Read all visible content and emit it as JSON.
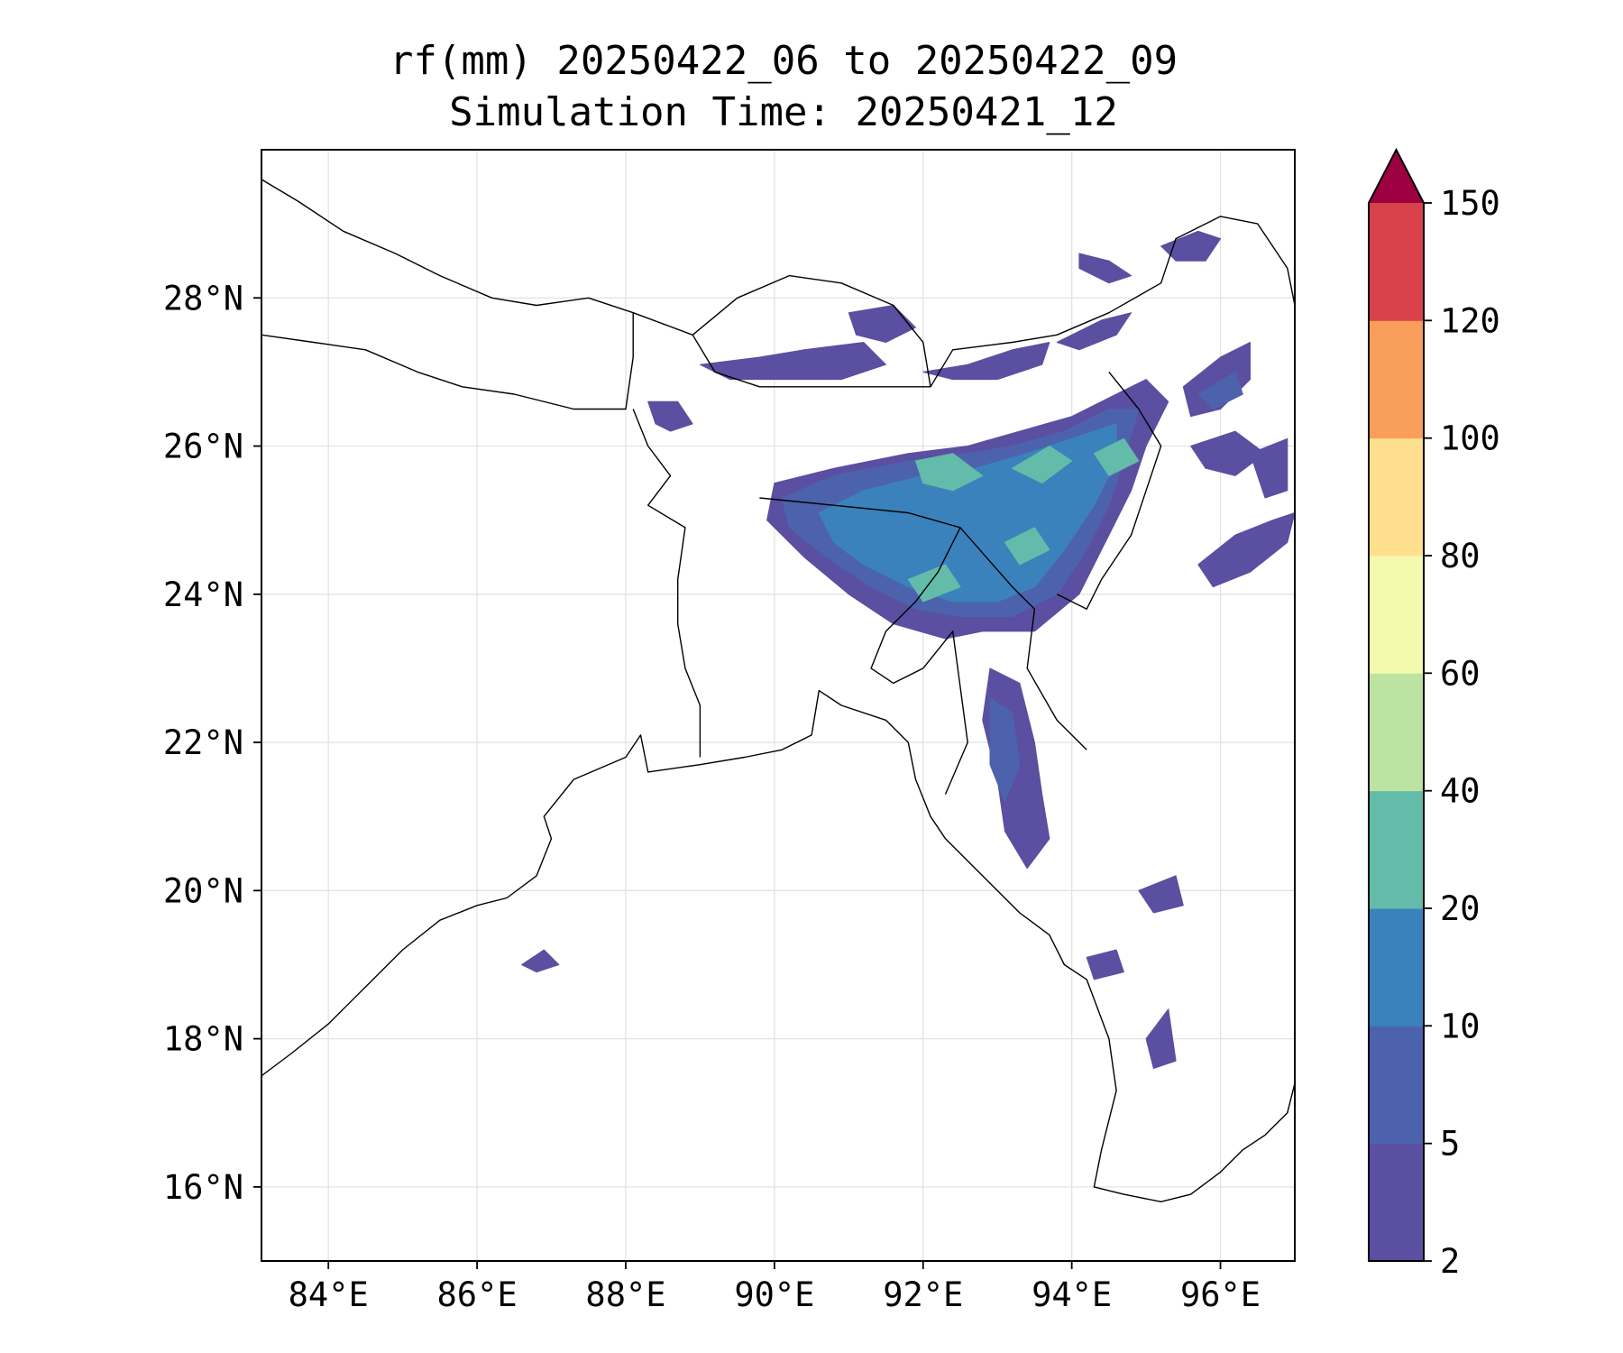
{
  "title": {
    "line1": "rf(mm) 20250422_06 to 20250422_09",
    "line2": "Simulation Time: 20250421_12"
  },
  "map": {
    "lon_range": [
      83.1,
      97.0
    ],
    "lat_range": [
      15.0,
      30.0
    ],
    "lon_ticks": [
      {
        "value": 84,
        "label": "84°E"
      },
      {
        "value": 86,
        "label": "86°E"
      },
      {
        "value": 88,
        "label": "88°E"
      },
      {
        "value": 90,
        "label": "90°E"
      },
      {
        "value": 92,
        "label": "92°E"
      },
      {
        "value": 94,
        "label": "94°E"
      },
      {
        "value": 96,
        "label": "96°E"
      }
    ],
    "lat_ticks": [
      {
        "value": 16,
        "label": "16°N"
      },
      {
        "value": 18,
        "label": "18°N"
      },
      {
        "value": 20,
        "label": "20°N"
      },
      {
        "value": 22,
        "label": "22°N"
      },
      {
        "value": 24,
        "label": "24°N"
      },
      {
        "value": 26,
        "label": "26°N"
      },
      {
        "value": 28,
        "label": "28°N"
      }
    ],
    "gridlines": true
  },
  "colorbar": {
    "levels": [
      {
        "label": "2"
      },
      {
        "label": "5"
      },
      {
        "label": "10"
      },
      {
        "label": "20"
      },
      {
        "label": "40"
      },
      {
        "label": "60"
      },
      {
        "label": "80"
      },
      {
        "label": "100"
      },
      {
        "label": "120"
      },
      {
        "label": "150"
      }
    ],
    "colors": [
      "#5a4fa0",
      "#4d62ad",
      "#3b82bc",
      "#63bca9",
      "#bde3a2",
      "#f3faad",
      "#fddf8e",
      "#f99e5a",
      "#d8414a"
    ],
    "extend_color": "#9e0142",
    "extend": "max"
  },
  "rain_patches": [
    {
      "level": 0,
      "lonlat": [
        [
          90.0,
          25.5
        ],
        [
          90.8,
          25.7
        ],
        [
          91.8,
          25.9
        ],
        [
          92.6,
          26.0
        ],
        [
          93.3,
          26.2
        ],
        [
          94.0,
          26.4
        ],
        [
          94.6,
          26.7
        ],
        [
          95.0,
          26.9
        ],
        [
          95.3,
          26.6
        ],
        [
          95.0,
          26.0
        ],
        [
          94.8,
          25.4
        ],
        [
          94.5,
          24.8
        ],
        [
          94.1,
          24.0
        ],
        [
          93.5,
          23.5
        ],
        [
          92.8,
          23.5
        ],
        [
          92.3,
          23.4
        ],
        [
          91.6,
          23.6
        ],
        [
          91.0,
          24.0
        ],
        [
          90.4,
          24.5
        ],
        [
          89.9,
          25.0
        ]
      ]
    },
    {
      "level": 0,
      "lonlat": [
        [
          95.5,
          26.8
        ],
        [
          96.0,
          27.2
        ],
        [
          96.4,
          27.4
        ],
        [
          96.4,
          26.9
        ],
        [
          96.0,
          26.5
        ],
        [
          95.6,
          26.4
        ]
      ]
    },
    {
      "level": 0,
      "lonlat": [
        [
          95.6,
          26.0
        ],
        [
          96.2,
          26.2
        ],
        [
          96.6,
          25.9
        ],
        [
          96.2,
          25.6
        ],
        [
          95.8,
          25.7
        ]
      ]
    },
    {
      "level": 0,
      "lonlat": [
        [
          96.4,
          25.9
        ],
        [
          96.9,
          26.1
        ],
        [
          96.9,
          25.4
        ],
        [
          96.6,
          25.3
        ]
      ]
    },
    {
      "level": 0,
      "lonlat": [
        [
          95.7,
          24.4
        ],
        [
          96.2,
          24.8
        ],
        [
          96.7,
          25.0
        ],
        [
          97.0,
          25.1
        ],
        [
          96.9,
          24.7
        ],
        [
          96.4,
          24.3
        ],
        [
          95.9,
          24.1
        ]
      ]
    },
    {
      "level": 0,
      "lonlat": [
        [
          92.9,
          23.0
        ],
        [
          93.3,
          22.8
        ],
        [
          93.5,
          22.0
        ],
        [
          93.6,
          21.3
        ],
        [
          93.7,
          20.7
        ],
        [
          93.4,
          20.3
        ],
        [
          93.1,
          20.8
        ],
        [
          93.0,
          21.5
        ],
        [
          92.8,
          22.3
        ]
      ]
    },
    {
      "level": 0,
      "lonlat": [
        [
          92.0,
          27.0
        ],
        [
          92.6,
          27.1
        ],
        [
          93.2,
          27.3
        ],
        [
          93.7,
          27.4
        ],
        [
          93.6,
          27.1
        ],
        [
          93.0,
          26.9
        ],
        [
          92.4,
          26.9
        ]
      ]
    },
    {
      "level": 0,
      "lonlat": [
        [
          89.0,
          27.1
        ],
        [
          89.8,
          27.2
        ],
        [
          90.4,
          27.3
        ],
        [
          91.2,
          27.4
        ],
        [
          91.5,
          27.1
        ],
        [
          90.9,
          26.9
        ],
        [
          90.1,
          26.9
        ],
        [
          89.4,
          26.9
        ]
      ]
    },
    {
      "level": 0,
      "lonlat": [
        [
          88.3,
          26.6
        ],
        [
          88.7,
          26.6
        ],
        [
          88.9,
          26.3
        ],
        [
          88.6,
          26.2
        ],
        [
          88.4,
          26.3
        ]
      ]
    },
    {
      "level": 0,
      "lonlat": [
        [
          91.0,
          27.8
        ],
        [
          91.6,
          27.9
        ],
        [
          91.9,
          27.6
        ],
        [
          91.5,
          27.4
        ],
        [
          91.1,
          27.5
        ]
      ]
    },
    {
      "level": 0,
      "lonlat": [
        [
          93.8,
          27.4
        ],
        [
          94.4,
          27.7
        ],
        [
          94.8,
          27.8
        ],
        [
          94.6,
          27.5
        ],
        [
          94.1,
          27.3
        ]
      ]
    },
    {
      "level": 0,
      "lonlat": [
        [
          94.1,
          28.6
        ],
        [
          94.5,
          28.5
        ],
        [
          94.8,
          28.3
        ],
        [
          94.5,
          28.2
        ],
        [
          94.1,
          28.4
        ]
      ]
    },
    {
      "level": 0,
      "lonlat": [
        [
          95.2,
          28.7
        ],
        [
          95.7,
          28.9
        ],
        [
          96.0,
          28.8
        ],
        [
          95.8,
          28.5
        ],
        [
          95.4,
          28.5
        ]
      ]
    },
    {
      "level": 0,
      "lonlat": [
        [
          94.9,
          20.0
        ],
        [
          95.4,
          20.2
        ],
        [
          95.5,
          19.8
        ],
        [
          95.1,
          19.7
        ]
      ]
    },
    {
      "level": 0,
      "lonlat": [
        [
          94.2,
          19.1
        ],
        [
          94.6,
          19.2
        ],
        [
          94.7,
          18.9
        ],
        [
          94.3,
          18.8
        ]
      ]
    },
    {
      "level": 0,
      "lonlat": [
        [
          95.0,
          18.0
        ],
        [
          95.3,
          18.4
        ],
        [
          95.4,
          17.7
        ],
        [
          95.1,
          17.6
        ]
      ]
    },
    {
      "level": 0,
      "lonlat": [
        [
          86.6,
          19.0
        ],
        [
          86.9,
          19.2
        ],
        [
          87.1,
          19.0
        ],
        [
          86.8,
          18.9
        ]
      ]
    },
    {
      "level": 1,
      "lonlat": [
        [
          90.1,
          25.3
        ],
        [
          90.8,
          25.6
        ],
        [
          91.8,
          25.8
        ],
        [
          92.6,
          25.9
        ],
        [
          93.2,
          26.0
        ],
        [
          93.9,
          26.2
        ],
        [
          94.5,
          26.5
        ],
        [
          94.9,
          26.5
        ],
        [
          94.7,
          25.8
        ],
        [
          94.5,
          25.2
        ],
        [
          94.2,
          24.6
        ],
        [
          93.8,
          24.0
        ],
        [
          93.2,
          23.7
        ],
        [
          92.5,
          23.7
        ],
        [
          91.9,
          23.8
        ],
        [
          91.3,
          24.1
        ],
        [
          90.7,
          24.5
        ],
        [
          90.2,
          24.9
        ]
      ]
    },
    {
      "level": 1,
      "lonlat": [
        [
          92.9,
          22.6
        ],
        [
          93.2,
          22.4
        ],
        [
          93.3,
          21.7
        ],
        [
          93.1,
          21.2
        ],
        [
          92.9,
          21.7
        ]
      ]
    },
    {
      "level": 1,
      "lonlat": [
        [
          95.7,
          26.7
        ],
        [
          96.2,
          27.0
        ],
        [
          96.3,
          26.7
        ],
        [
          95.9,
          26.5
        ]
      ]
    },
    {
      "level": 2,
      "lonlat": [
        [
          90.6,
          25.1
        ],
        [
          91.2,
          25.4
        ],
        [
          92.0,
          25.6
        ],
        [
          92.7,
          25.7
        ],
        [
          93.4,
          25.9
        ],
        [
          94.0,
          26.1
        ],
        [
          94.6,
          26.3
        ],
        [
          94.6,
          25.8
        ],
        [
          94.3,
          25.2
        ],
        [
          93.9,
          24.6
        ],
        [
          93.5,
          24.1
        ],
        [
          93.0,
          23.9
        ],
        [
          92.4,
          23.9
        ],
        [
          91.8,
          24.1
        ],
        [
          91.2,
          24.4
        ],
        [
          90.8,
          24.7
        ]
      ]
    },
    {
      "level": 3,
      "lonlat": [
        [
          91.9,
          25.8
        ],
        [
          92.4,
          25.9
        ],
        [
          92.8,
          25.6
        ],
        [
          92.4,
          25.4
        ],
        [
          92.0,
          25.5
        ]
      ]
    },
    {
      "level": 3,
      "lonlat": [
        [
          93.2,
          25.7
        ],
        [
          93.7,
          26.0
        ],
        [
          94.0,
          25.8
        ],
        [
          93.6,
          25.5
        ]
      ]
    },
    {
      "level": 3,
      "lonlat": [
        [
          91.8,
          24.2
        ],
        [
          92.3,
          24.4
        ],
        [
          92.5,
          24.1
        ],
        [
          92.0,
          23.9
        ]
      ]
    },
    {
      "level": 3,
      "lonlat": [
        [
          94.3,
          25.9
        ],
        [
          94.7,
          26.1
        ],
        [
          94.9,
          25.8
        ],
        [
          94.5,
          25.6
        ]
      ]
    },
    {
      "level": 3,
      "lonlat": [
        [
          93.1,
          24.7
        ],
        [
          93.5,
          24.9
        ],
        [
          93.7,
          24.6
        ],
        [
          93.3,
          24.4
        ]
      ]
    }
  ],
  "coastline_lonlat": [
    [
      83.1,
      17.5
    ],
    [
      83.5,
      17.8
    ],
    [
      84.0,
      18.2
    ],
    [
      84.5,
      18.7
    ],
    [
      85.0,
      19.2
    ],
    [
      85.5,
      19.6
    ],
    [
      86.0,
      19.8
    ],
    [
      86.4,
      19.9
    ],
    [
      86.8,
      20.2
    ],
    [
      87.0,
      20.7
    ],
    [
      86.9,
      21.0
    ],
    [
      87.3,
      21.5
    ],
    [
      88.0,
      21.8
    ],
    [
      88.2,
      22.1
    ],
    [
      88.3,
      21.6
    ],
    [
      89.0,
      21.7
    ],
    [
      89.6,
      21.8
    ],
    [
      90.1,
      21.9
    ],
    [
      90.5,
      22.1
    ],
    [
      90.6,
      22.7
    ],
    [
      90.9,
      22.5
    ],
    [
      91.5,
      22.3
    ],
    [
      91.8,
      22.0
    ],
    [
      91.9,
      21.5
    ],
    [
      92.1,
      21.0
    ],
    [
      92.3,
      20.7
    ],
    [
      92.8,
      20.2
    ],
    [
      93.3,
      19.7
    ],
    [
      93.7,
      19.4
    ],
    [
      93.9,
      19.0
    ],
    [
      94.2,
      18.8
    ],
    [
      94.5,
      18.0
    ],
    [
      94.6,
      17.3
    ],
    [
      94.4,
      16.5
    ],
    [
      94.3,
      16.0
    ],
    [
      94.7,
      15.9
    ],
    [
      95.2,
      15.8
    ],
    [
      95.6,
      15.9
    ],
    [
      96.0,
      16.2
    ],
    [
      96.3,
      16.5
    ],
    [
      96.6,
      16.7
    ],
    [
      96.9,
      17.0
    ],
    [
      97.0,
      17.4
    ]
  ],
  "borders_lonlat": [
    [
      [
        83.1,
        27.5
      ],
      [
        83.8,
        27.4
      ],
      [
        84.5,
        27.3
      ],
      [
        85.2,
        27.0
      ],
      [
        85.8,
        26.8
      ],
      [
        86.5,
        26.7
      ],
      [
        87.3,
        26.5
      ],
      [
        88.0,
        26.5
      ],
      [
        88.1,
        27.2
      ],
      [
        88.1,
        27.8
      ],
      [
        88.9,
        27.5
      ],
      [
        89.2,
        27.0
      ],
      [
        89.8,
        26.8
      ],
      [
        90.5,
        26.8
      ],
      [
        91.4,
        26.8
      ],
      [
        92.1,
        26.8
      ],
      [
        92.0,
        27.4
      ],
      [
        91.6,
        27.9
      ],
      [
        90.9,
        28.2
      ],
      [
        90.2,
        28.3
      ],
      [
        89.5,
        28.0
      ],
      [
        88.9,
        27.5
      ]
    ],
    [
      [
        83.1,
        29.6
      ],
      [
        83.6,
        29.3
      ],
      [
        84.2,
        28.9
      ],
      [
        84.9,
        28.6
      ],
      [
        85.5,
        28.3
      ],
      [
        86.2,
        28.0
      ],
      [
        86.8,
        27.9
      ],
      [
        87.5,
        28.0
      ],
      [
        88.1,
        27.8
      ]
    ],
    [
      [
        92.1,
        26.8
      ],
      [
        92.4,
        27.3
      ],
      [
        93.2,
        27.4
      ],
      [
        93.8,
        27.5
      ],
      [
        94.5,
        27.8
      ],
      [
        95.2,
        28.2
      ],
      [
        95.4,
        28.8
      ],
      [
        96.0,
        29.1
      ],
      [
        96.5,
        29.0
      ],
      [
        96.9,
        28.4
      ],
      [
        97.0,
        27.9
      ]
    ],
    [
      [
        88.1,
        26.5
      ],
      [
        88.3,
        26.0
      ],
      [
        88.6,
        25.6
      ],
      [
        88.3,
        25.2
      ],
      [
        88.8,
        24.9
      ],
      [
        88.7,
        24.2
      ],
      [
        88.7,
        23.6
      ],
      [
        88.8,
        23.0
      ],
      [
        89.0,
        22.5
      ],
      [
        89.0,
        21.8
      ]
    ],
    [
      [
        89.8,
        25.3
      ],
      [
        90.8,
        25.2
      ],
      [
        91.8,
        25.1
      ],
      [
        92.5,
        24.9
      ],
      [
        92.2,
        24.3
      ],
      [
        91.9,
        23.9
      ],
      [
        91.5,
        23.5
      ],
      [
        91.3,
        23.0
      ],
      [
        91.6,
        22.8
      ],
      [
        92.0,
        23.0
      ],
      [
        92.4,
        23.5
      ],
      [
        92.6,
        22.0
      ],
      [
        92.3,
        21.3
      ]
    ],
    [
      [
        92.5,
        24.9
      ],
      [
        93.2,
        24.1
      ],
      [
        93.5,
        23.8
      ],
      [
        93.4,
        23.0
      ],
      [
        93.8,
        22.3
      ],
      [
        94.2,
        21.9
      ]
    ],
    [
      [
        94.5,
        27.0
      ],
      [
        94.9,
        26.5
      ],
      [
        95.2,
        26.0
      ],
      [
        95.0,
        25.4
      ],
      [
        94.8,
        24.8
      ],
      [
        94.4,
        24.2
      ],
      [
        94.2,
        23.8
      ],
      [
        93.8,
        24.0
      ]
    ]
  ]
}
